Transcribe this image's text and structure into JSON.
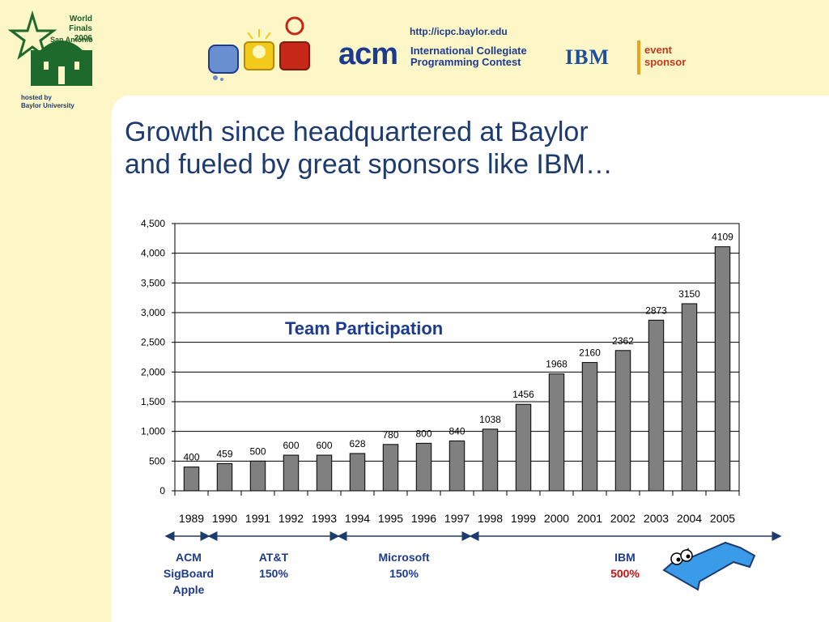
{
  "header": {
    "world_finals": "World Finals",
    "year": "2006",
    "city": "San Antonio",
    "hosted_by": "hosted by",
    "host": "Baylor University",
    "url": "http://icpc.baylor.edu",
    "acm": "acm",
    "contest_line1": "International Collegiate",
    "contest_line2": "Programming Contest",
    "ibm": "IBM",
    "event_line1": "event",
    "event_line2": "sponsor"
  },
  "slide": {
    "title_line1": "Growth since headquartered at Baylor",
    "title_line2": "and fueled by great sponsors like IBM…"
  },
  "chart_data": {
    "type": "bar",
    "title": "Team Participation",
    "categories": [
      "1989",
      "1990",
      "1991",
      "1992",
      "1993",
      "1994",
      "1995",
      "1996",
      "1997",
      "1998",
      "1999",
      "2000",
      "2001",
      "2002",
      "2003",
      "2004",
      "2005"
    ],
    "values": [
      400,
      459,
      500,
      600,
      600,
      628,
      780,
      800,
      840,
      1038,
      1456,
      1968,
      2160,
      2362,
      2873,
      3150,
      4109
    ],
    "y_ticks": [
      "0",
      "500",
      "1,000",
      "1,500",
      "2,000",
      "2,500",
      "3,000",
      "3,500",
      "4,000",
      "4,500"
    ],
    "ylim": [
      0,
      4500
    ],
    "grid": true,
    "bar_color": "#808080"
  },
  "sponsors": [
    {
      "line1": "ACM",
      "line2": "SigBoard",
      "line3": "Apple"
    },
    {
      "line1": "AT&T",
      "line2": "150%"
    },
    {
      "line1": "Microsoft",
      "line2": "150%"
    },
    {
      "line1": "IBM",
      "line2": "500%"
    }
  ]
}
